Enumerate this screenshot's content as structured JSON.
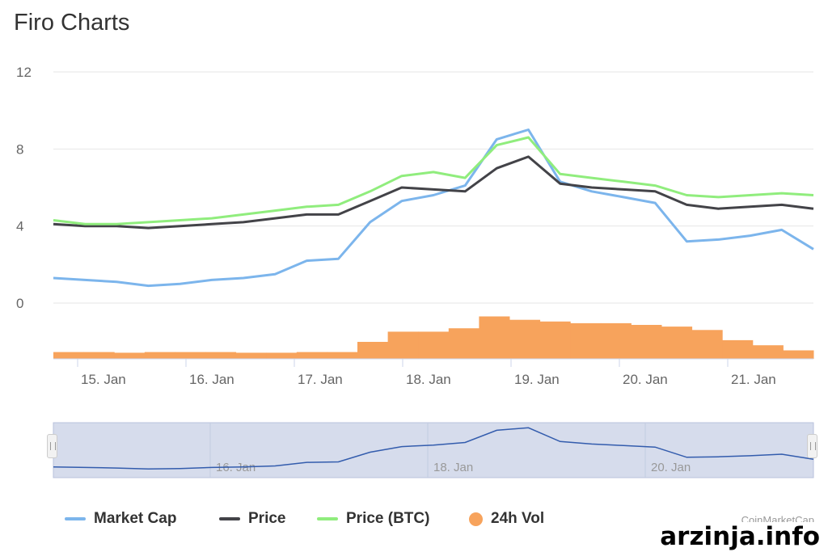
{
  "title": "Firo Charts",
  "credit": "CoinMarketCap",
  "watermark": "arzinja.info",
  "legend": [
    {
      "label": "Market Cap",
      "color": "#7cb5ec",
      "shape": "line"
    },
    {
      "label": "Price",
      "color": "#434348",
      "shape": "line"
    },
    {
      "label": "Price (BTC)",
      "color": "#90ed7d",
      "shape": "line"
    },
    {
      "label": "24h Vol",
      "color": "#f7a35c",
      "shape": "circle"
    }
  ],
  "chart_data": {
    "type": "line",
    "x_unit": "date",
    "x": [
      "14 Jan 12:00",
      "15 Jan 00:00",
      "15 Jan 12:00",
      "16 Jan 00:00",
      "16 Jan 12:00",
      "17 Jan 00:00",
      "17 Jan 12:00",
      "17 Jan 18:00",
      "18 Jan 00:00",
      "18 Jan 06:00",
      "18 Jan 12:00",
      "18 Jan 18:00",
      "19 Jan 00:00",
      "19 Jan 03:00",
      "19 Jan 06:00",
      "19 Jan 12:00",
      "19 Jan 18:00",
      "20 Jan 00:00",
      "20 Jan 06:00",
      "20 Jan 12:00",
      "20 Jan 18:00",
      "21 Jan 00:00",
      "21 Jan 06:00",
      "21 Jan 12:00",
      "21 Jan 18:00"
    ],
    "ylim": [
      0,
      12
    ],
    "yticks": [
      "0",
      "4",
      "8",
      "12"
    ],
    "xticks": [
      "15. Jan",
      "16. Jan",
      "17. Jan",
      "18. Jan",
      "19. Jan",
      "20. Jan",
      "21. Jan"
    ],
    "series": [
      {
        "name": "Market Cap",
        "color": "#7cb5ec",
        "values": [
          1.3,
          1.2,
          1.1,
          0.9,
          1.0,
          1.2,
          1.3,
          1.5,
          2.2,
          2.3,
          4.2,
          5.3,
          5.6,
          6.1,
          8.5,
          9.0,
          6.3,
          5.8,
          5.5,
          5.2,
          3.2,
          3.3,
          3.5,
          3.8,
          2.8
        ]
      },
      {
        "name": "Price",
        "color": "#434348",
        "values": [
          4.1,
          4.0,
          4.0,
          3.9,
          4.0,
          4.1,
          4.2,
          4.4,
          4.6,
          4.6,
          5.3,
          6.0,
          5.9,
          5.8,
          7.0,
          7.6,
          6.2,
          6.0,
          5.9,
          5.8,
          5.1,
          4.9,
          5.0,
          5.1,
          4.9
        ]
      },
      {
        "name": "Price (BTC)",
        "color": "#90ed7d",
        "values": [
          4.3,
          4.1,
          4.1,
          4.2,
          4.3,
          4.4,
          4.6,
          4.8,
          5.0,
          5.1,
          5.8,
          6.6,
          6.8,
          6.5,
          8.2,
          8.6,
          6.7,
          6.5,
          6.3,
          6.1,
          5.6,
          5.5,
          5.6,
          5.7,
          5.6
        ]
      }
    ],
    "volume": {
      "name": "24h Vol",
      "color": "#f7a35c",
      "values": [
        0.2,
        0.2,
        0.18,
        0.2,
        0.2,
        0.2,
        0.18,
        0.18,
        0.2,
        0.2,
        0.5,
        0.8,
        0.8,
        0.9,
        1.25,
        1.15,
        1.1,
        1.05,
        1.05,
        1.0,
        0.95,
        0.85,
        0.55,
        0.4,
        0.25
      ]
    },
    "navigator": {
      "xticks": [
        "16. Jan",
        "18. Jan",
        "20. Jan"
      ]
    }
  }
}
